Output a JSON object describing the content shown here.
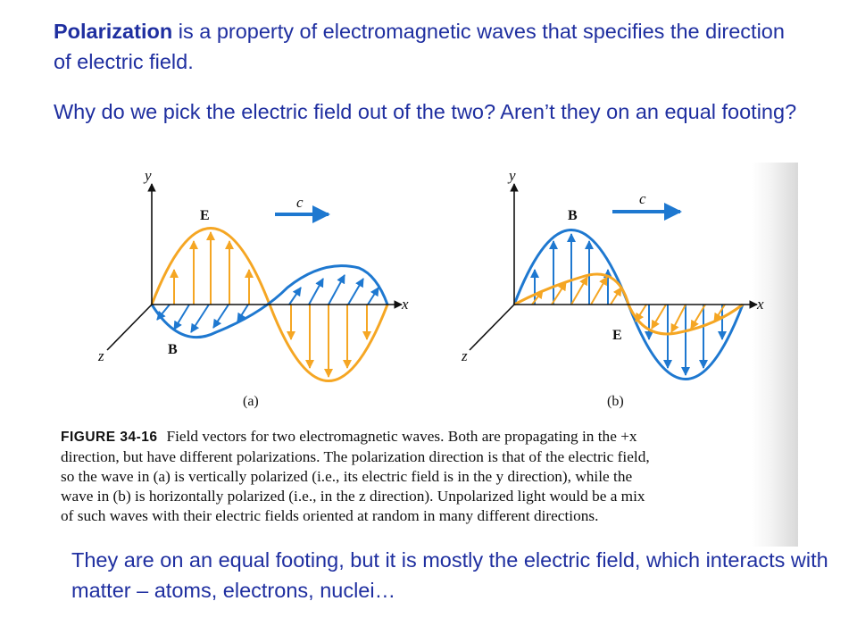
{
  "intro": {
    "term": "Polarization",
    "rest": " is a property of electromagnetic waves that specifies the direction of electric field."
  },
  "question": "Why do we pick the electric field out of the two? Aren’t they on an equal footing?",
  "figure": {
    "panel_a": {
      "y": "y",
      "x": "x",
      "z": "z",
      "c": "c",
      "E": "E",
      "B": "B",
      "label": "(a)"
    },
    "panel_b": {
      "y": "y",
      "x": "x",
      "z": "z",
      "c": "c",
      "E": "E",
      "B": "B",
      "label": "(b)"
    },
    "caption_label": "FIGURE 34-16",
    "caption_lines": [
      "Field vectors for two electromagnetic waves. Both are propagating in the +x",
      "direction, but have different polarizations. The polarization direction is that of the electric field,",
      "so the wave in (a) is vertically polarized (i.e., its electric field is in the y direction), while the",
      "wave in (b) is horizontally polarized (i.e., in the z direction). Unpolarized light would be a mix",
      "of such waves with their electric fields oriented at random in many different directions."
    ],
    "colors": {
      "orange": "#f5a623",
      "blue": "#1e78d0",
      "axis": "#111111"
    }
  },
  "answer": "They are on an equal footing, but it is mostly the electric field, which interacts with matter – atoms, electrons, nuclei…"
}
